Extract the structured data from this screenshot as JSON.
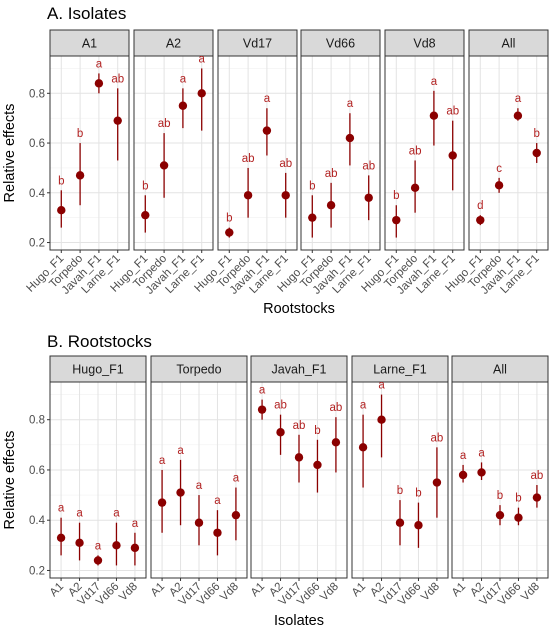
{
  "chart_data": [
    {
      "type": "scatter",
      "title": "A. Isolates",
      "xlabel": "Rootstocks",
      "ylabel": "Relative effects",
      "ylim": [
        0.17,
        0.95
      ],
      "yticks": [
        0.2,
        0.4,
        0.6,
        0.8
      ],
      "grid": true,
      "categories": [
        "Hugo_F1",
        "Torpedo",
        "Javah_F1",
        "Larne_F1"
      ],
      "facets": [
        {
          "label": "A1",
          "values": [
            0.33,
            0.47,
            0.84,
            0.69
          ],
          "lower": [
            0.26,
            0.35,
            0.8,
            0.53
          ],
          "upper": [
            0.41,
            0.6,
            0.88,
            0.82
          ],
          "letters": [
            "b",
            "b",
            "a",
            "ab"
          ]
        },
        {
          "label": "A2",
          "values": [
            0.31,
            0.51,
            0.75,
            0.8
          ],
          "lower": [
            0.24,
            0.38,
            0.66,
            0.65
          ],
          "upper": [
            0.39,
            0.64,
            0.82,
            0.9
          ],
          "letters": [
            "b",
            "ab",
            "a",
            "a"
          ]
        },
        {
          "label": "Vd17",
          "values": [
            0.24,
            0.39,
            0.65,
            0.39
          ],
          "lower": [
            0.22,
            0.3,
            0.55,
            0.3
          ],
          "upper": [
            0.26,
            0.5,
            0.74,
            0.48
          ],
          "letters": [
            "b",
            "ab",
            "a",
            "ab"
          ]
        },
        {
          "label": "Vd66",
          "values": [
            0.3,
            0.35,
            0.62,
            0.38
          ],
          "lower": [
            0.22,
            0.26,
            0.51,
            0.29
          ],
          "upper": [
            0.39,
            0.44,
            0.72,
            0.47
          ],
          "letters": [
            "b",
            "ab",
            "a",
            "ab"
          ]
        },
        {
          "label": "Vd8",
          "values": [
            0.29,
            0.42,
            0.71,
            0.55
          ],
          "lower": [
            0.22,
            0.32,
            0.59,
            0.41
          ],
          "upper": [
            0.35,
            0.53,
            0.81,
            0.69
          ],
          "letters": [
            "b",
            "ab",
            "a",
            "ab"
          ]
        },
        {
          "label": "All",
          "values": [
            0.29,
            0.43,
            0.71,
            0.56
          ],
          "lower": [
            0.27,
            0.4,
            0.69,
            0.52
          ],
          "upper": [
            0.31,
            0.46,
            0.74,
            0.6
          ],
          "letters": [
            "d",
            "c",
            "a",
            "b"
          ]
        }
      ]
    },
    {
      "type": "scatter",
      "title": "B. Rootstocks",
      "xlabel": "Isolates",
      "ylabel": "Relative effects",
      "ylim": [
        0.17,
        0.95
      ],
      "yticks": [
        0.2,
        0.4,
        0.6,
        0.8
      ],
      "grid": true,
      "categories": [
        "A1",
        "A2",
        "Vd17",
        "Vd66",
        "Vd8"
      ],
      "facets": [
        {
          "label": "Hugo_F1",
          "values": [
            0.33,
            0.31,
            0.24,
            0.3,
            0.29
          ],
          "lower": [
            0.26,
            0.24,
            0.22,
            0.22,
            0.22
          ],
          "upper": [
            0.41,
            0.39,
            0.26,
            0.39,
            0.35
          ],
          "letters": [
            "a",
            "a",
            "a",
            "a",
            "a"
          ]
        },
        {
          "label": "Torpedo",
          "values": [
            0.47,
            0.51,
            0.39,
            0.35,
            0.42
          ],
          "lower": [
            0.35,
            0.38,
            0.3,
            0.26,
            0.32
          ],
          "upper": [
            0.6,
            0.64,
            0.5,
            0.44,
            0.53
          ],
          "letters": [
            "a",
            "a",
            "a",
            "a",
            "a"
          ]
        },
        {
          "label": "Javah_F1",
          "values": [
            0.84,
            0.75,
            0.65,
            0.62,
            0.71
          ],
          "lower": [
            0.8,
            0.66,
            0.55,
            0.51,
            0.59
          ],
          "upper": [
            0.88,
            0.82,
            0.74,
            0.72,
            0.81
          ],
          "letters": [
            "a",
            "ab",
            "ab",
            "b",
            "ab"
          ]
        },
        {
          "label": "Larne_F1",
          "values": [
            0.69,
            0.8,
            0.39,
            0.38,
            0.55
          ],
          "lower": [
            0.53,
            0.65,
            0.3,
            0.29,
            0.41
          ],
          "upper": [
            0.82,
            0.9,
            0.48,
            0.47,
            0.69
          ],
          "letters": [
            "a",
            "a",
            "b",
            "b",
            "ab"
          ]
        },
        {
          "label": "All",
          "values": [
            0.58,
            0.59,
            0.42,
            0.41,
            0.49
          ],
          "lower": [
            0.55,
            0.56,
            0.38,
            0.38,
            0.45
          ],
          "upper": [
            0.62,
            0.63,
            0.46,
            0.45,
            0.54
          ],
          "letters": [
            "a",
            "a",
            "b",
            "b",
            "ab"
          ]
        }
      ]
    }
  ],
  "colors": {
    "point": "#8b0000",
    "letter": "#b22222",
    "strip": "#d9d9d9"
  }
}
